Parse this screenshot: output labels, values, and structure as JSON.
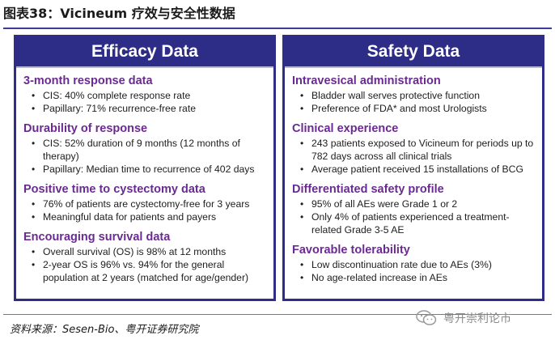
{
  "figure": {
    "title": "图表38：Vicineum 疗效与安全性数据"
  },
  "efficacy": {
    "header": "Efficacy Data",
    "sections": [
      {
        "title": "3-month response data",
        "bullets": [
          "CIS: 40% complete response rate",
          "Papillary: 71% recurrence-free rate"
        ]
      },
      {
        "title": "Durability of response",
        "bullets": [
          "CIS: 52% duration of 9 months (12 months of therapy)",
          "Papillary: Median time to recurrence of 402 days"
        ]
      },
      {
        "title": "Positive time to cystectomy data",
        "bullets": [
          "76% of patients are cystectomy-free for 3 years",
          "Meaningful data for patients and payers"
        ]
      },
      {
        "title": "Encouraging survival data",
        "bullets": [
          "Overall survival (OS) is 98% at 12 months",
          "2-year OS is 96% vs. 94% for the general population at 2 years (matched for age/gender)"
        ]
      }
    ]
  },
  "safety": {
    "header": "Safety Data",
    "sections": [
      {
        "title": "Intravesical administration",
        "bullets": [
          "Bladder wall serves protective function",
          "Preference of FDA* and most Urologists"
        ]
      },
      {
        "title": "Clinical experience",
        "bullets": [
          "243 patients exposed to Vicineum for periods up to 782 days across all clinical trials",
          "Average patient received 15 installations of BCG"
        ]
      },
      {
        "title": "Differentiated safety profile",
        "bullets": [
          "95% of all AEs were Grade 1 or 2",
          "Only 4% of patients experienced a treatment-related Grade 3-5 AE"
        ]
      },
      {
        "title": "Favorable tolerability",
        "bullets": [
          "Low discontinuation rate due to AEs (3%)",
          "No age-related increase in AEs"
        ]
      }
    ]
  },
  "footer": {
    "source": "资料来源：Sesen-Bio、粤开证券研究院",
    "watermark": "粤开崇利论市"
  },
  "colors": {
    "header_bg": "#2d2d88",
    "section_title": "#6b2a92",
    "border": "#2e2e8a"
  },
  "icons": {
    "watermark_logo": "wechat-icon"
  }
}
